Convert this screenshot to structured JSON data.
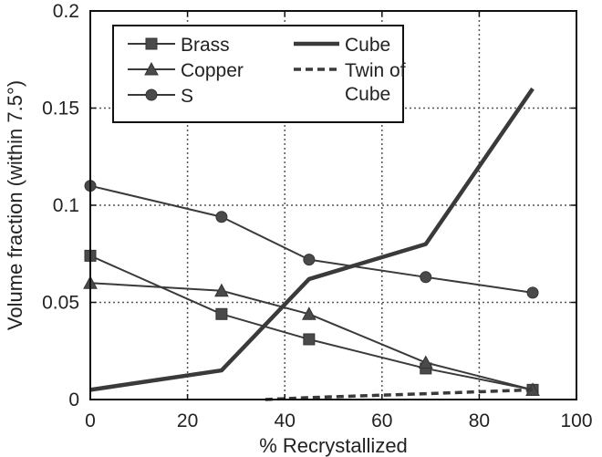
{
  "chart_data": {
    "type": "line",
    "title": "",
    "xlabel": "% Recrystallized",
    "ylabel": "Volume fraction (within 7.5°)",
    "xlim": [
      0,
      100
    ],
    "ylim": [
      0,
      0.2
    ],
    "x_ticks": [
      0,
      20,
      40,
      60,
      80,
      100
    ],
    "x_tick_labels": [
      "0",
      "20",
      "40",
      "60",
      "80",
      "100"
    ],
    "y_ticks": [
      0,
      0.05,
      0.1,
      0.15,
      0.2
    ],
    "y_tick_labels": [
      "0",
      "0.05",
      "0.1",
      "0.15",
      "0.2"
    ],
    "grid": true,
    "legend_position": "top-left",
    "series": [
      {
        "name": "Brass",
        "marker": "square",
        "style": "solid-thin",
        "x": [
          0,
          27,
          45,
          69,
          91
        ],
        "y": [
          0.074,
          0.044,
          0.031,
          0.016,
          0.005
        ]
      },
      {
        "name": "Copper",
        "marker": "triangle",
        "style": "solid-thin",
        "x": [
          0,
          27,
          45,
          69,
          91
        ],
        "y": [
          0.06,
          0.056,
          0.044,
          0.019,
          0.005
        ]
      },
      {
        "name": "S",
        "marker": "circle",
        "style": "solid-thin",
        "x": [
          0,
          27,
          45,
          69,
          91
        ],
        "y": [
          0.11,
          0.094,
          0.072,
          0.063,
          0.055
        ]
      },
      {
        "name": "Cube",
        "marker": "none",
        "style": "solid-thick",
        "x": [
          0,
          27,
          45,
          69,
          91
        ],
        "y": [
          0.005,
          0.015,
          0.062,
          0.08,
          0.16
        ]
      },
      {
        "name": "Twin of Cube",
        "legend_lines": [
          "Twin of",
          "Cube"
        ],
        "marker": "none",
        "style": "dashed-thick",
        "x": [
          36,
          45,
          69,
          91
        ],
        "y": [
          0.0,
          0.001,
          0.003,
          0.005
        ]
      }
    ]
  }
}
